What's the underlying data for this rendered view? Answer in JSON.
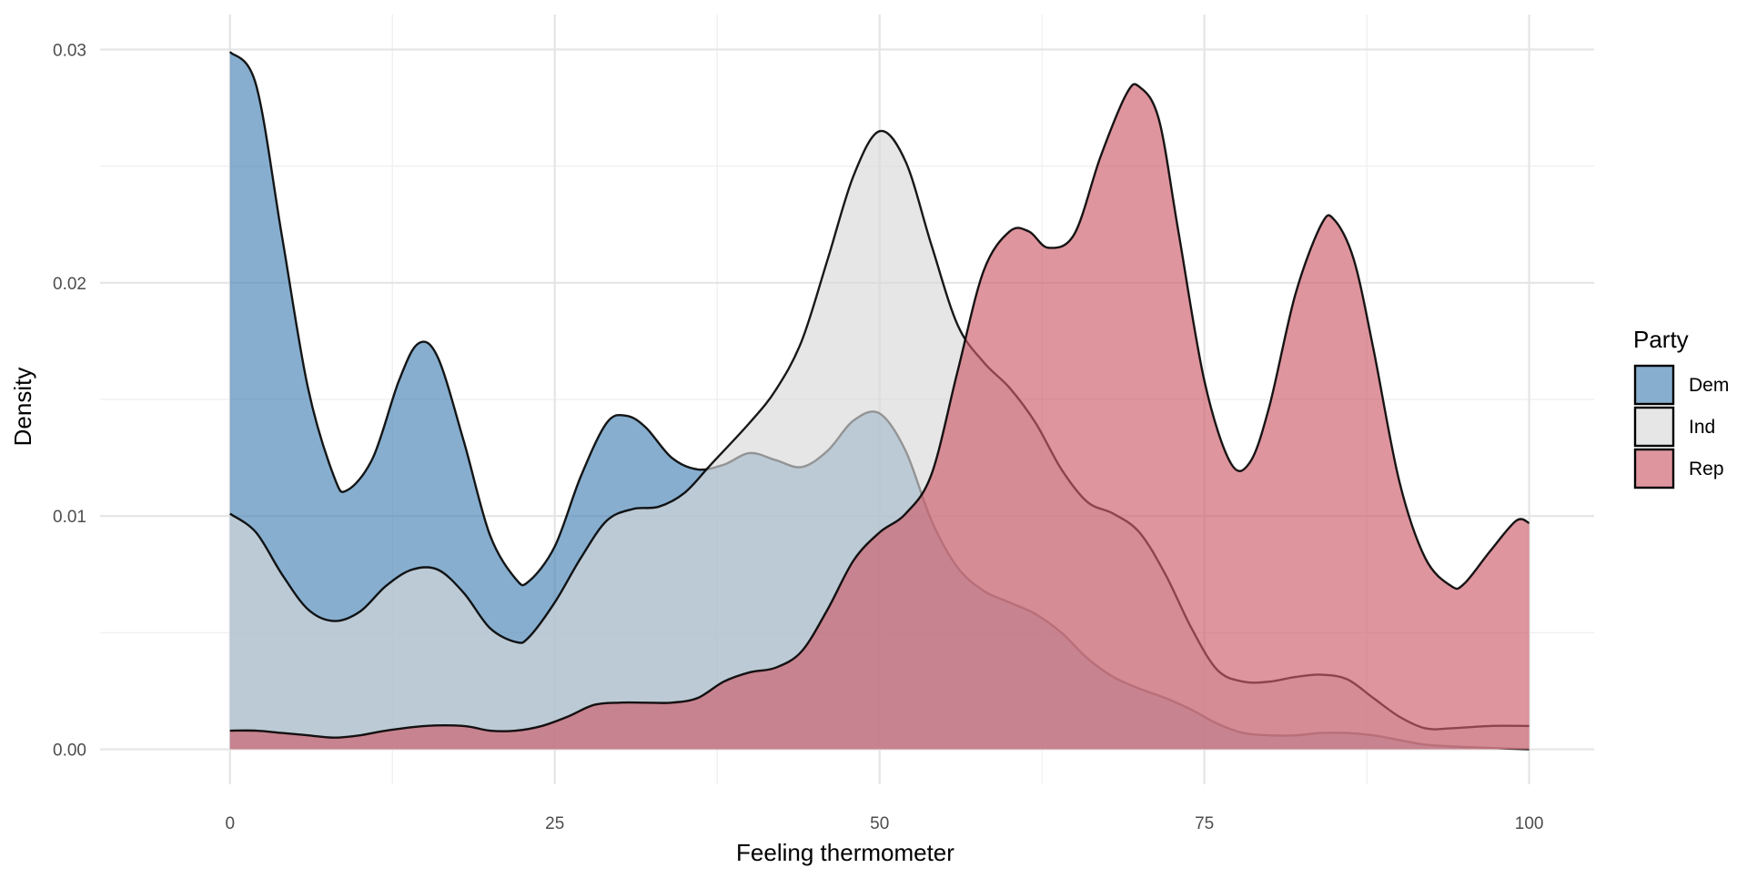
{
  "chart_data": {
    "type": "area",
    "title": "",
    "xlabel": "Feeling thermometer",
    "ylabel": "Density",
    "xlim": [
      -10,
      105
    ],
    "ylim": [
      -0.0015,
      0.0315
    ],
    "x_ticks": [
      0,
      25,
      50,
      75,
      100
    ],
    "x_tick_labels": [
      "0",
      "25",
      "50",
      "75",
      "100"
    ],
    "y_ticks": [
      0.0,
      0.01,
      0.02,
      0.03
    ],
    "y_tick_labels": [
      "0.00",
      "0.01",
      "0.02",
      "0.03"
    ],
    "grid": true,
    "legend": {
      "title": "Party",
      "position": "right"
    },
    "series": [
      {
        "name": "Dem",
        "color": "#4682b4",
        "points": [
          [
            0,
            0.0299
          ],
          [
            2,
            0.0285
          ],
          [
            4,
            0.022
          ],
          [
            6,
            0.0155
          ],
          [
            8,
            0.0117
          ],
          [
            9,
            0.0111
          ],
          [
            11,
            0.0125
          ],
          [
            13,
            0.0158
          ],
          [
            14.5,
            0.0174
          ],
          [
            16,
            0.0168
          ],
          [
            18,
            0.0132
          ],
          [
            20,
            0.0092
          ],
          [
            22,
            0.0073
          ],
          [
            23,
            0.0072
          ],
          [
            25,
            0.0087
          ],
          [
            27,
            0.0117
          ],
          [
            29,
            0.014
          ],
          [
            30.5,
            0.0143
          ],
          [
            32,
            0.0138
          ],
          [
            34,
            0.0125
          ],
          [
            36,
            0.012
          ],
          [
            38,
            0.0122
          ],
          [
            40,
            0.0127
          ],
          [
            42,
            0.0124
          ],
          [
            44,
            0.0121
          ],
          [
            46,
            0.0128
          ],
          [
            48,
            0.0141
          ],
          [
            50,
            0.0144
          ],
          [
            52,
            0.0128
          ],
          [
            54,
            0.0098
          ],
          [
            56,
            0.0078
          ],
          [
            58,
            0.0068
          ],
          [
            60,
            0.0063
          ],
          [
            62,
            0.0058
          ],
          [
            64,
            0.005
          ],
          [
            66,
            0.0039
          ],
          [
            68,
            0.0031
          ],
          [
            70,
            0.0026
          ],
          [
            72,
            0.0022
          ],
          [
            74,
            0.0017
          ],
          [
            76,
            0.0011
          ],
          [
            78,
            0.0007
          ],
          [
            80,
            0.0006
          ],
          [
            82,
            0.0006
          ],
          [
            84,
            0.0007
          ],
          [
            86,
            0.0007
          ],
          [
            88,
            0.0006
          ],
          [
            90,
            0.0004
          ],
          [
            92,
            0.0002
          ],
          [
            95,
            0.0001
          ],
          [
            100,
            0.0
          ]
        ]
      },
      {
        "name": "Ind",
        "color": "#d9d9d9",
        "points": [
          [
            0,
            0.0101
          ],
          [
            2,
            0.0093
          ],
          [
            4,
            0.0075
          ],
          [
            6,
            0.006
          ],
          [
            8,
            0.0055
          ],
          [
            10,
            0.0059
          ],
          [
            12,
            0.007
          ],
          [
            14,
            0.0077
          ],
          [
            16,
            0.0077
          ],
          [
            18,
            0.0067
          ],
          [
            20,
            0.0052
          ],
          [
            22,
            0.0046
          ],
          [
            23,
            0.0048
          ],
          [
            25,
            0.0063
          ],
          [
            27,
            0.0082
          ],
          [
            29,
            0.0098
          ],
          [
            31,
            0.0103
          ],
          [
            33,
            0.0104
          ],
          [
            35,
            0.011
          ],
          [
            37,
            0.0122
          ],
          [
            40,
            0.014
          ],
          [
            42,
            0.0154
          ],
          [
            44,
            0.0175
          ],
          [
            46,
            0.021
          ],
          [
            48,
            0.0246
          ],
          [
            50,
            0.0265
          ],
          [
            52,
            0.0252
          ],
          [
            54,
            0.0216
          ],
          [
            56,
            0.0182
          ],
          [
            58,
            0.0166
          ],
          [
            60,
            0.0155
          ],
          [
            62,
            0.014
          ],
          [
            64,
            0.012
          ],
          [
            66,
            0.0106
          ],
          [
            68,
            0.0101
          ],
          [
            70,
            0.0093
          ],
          [
            72,
            0.0075
          ],
          [
            74,
            0.0052
          ],
          [
            76,
            0.0034
          ],
          [
            78,
            0.0029
          ],
          [
            80,
            0.0029
          ],
          [
            82,
            0.0031
          ],
          [
            84,
            0.0032
          ],
          [
            86,
            0.003
          ],
          [
            88,
            0.0022
          ],
          [
            90,
            0.0014
          ],
          [
            92,
            0.0009
          ],
          [
            94,
            0.0009
          ],
          [
            97,
            0.001
          ],
          [
            100,
            0.001
          ]
        ]
      },
      {
        "name": "Rep",
        "color": "#cd5c6a",
        "points": [
          [
            0,
            0.0008
          ],
          [
            2,
            0.0008
          ],
          [
            4,
            0.0007
          ],
          [
            6,
            0.0006
          ],
          [
            8,
            0.0005
          ],
          [
            10,
            0.0006
          ],
          [
            12,
            0.0008
          ],
          [
            15,
            0.001
          ],
          [
            18,
            0.001
          ],
          [
            20,
            0.0008
          ],
          [
            22,
            0.0008
          ],
          [
            24,
            0.001
          ],
          [
            26,
            0.0014
          ],
          [
            28,
            0.0019
          ],
          [
            30,
            0.002
          ],
          [
            32,
            0.002
          ],
          [
            34,
            0.002
          ],
          [
            36,
            0.0022
          ],
          [
            38,
            0.0029
          ],
          [
            40,
            0.0033
          ],
          [
            42,
            0.0035
          ],
          [
            44,
            0.0042
          ],
          [
            46,
            0.006
          ],
          [
            48,
            0.0081
          ],
          [
            50,
            0.0093
          ],
          [
            52,
            0.0101
          ],
          [
            54,
            0.0118
          ],
          [
            56,
            0.0162
          ],
          [
            58,
            0.0205
          ],
          [
            60,
            0.0222
          ],
          [
            61.5,
            0.0222
          ],
          [
            63,
            0.0215
          ],
          [
            65,
            0.0221
          ],
          [
            67,
            0.0254
          ],
          [
            69,
            0.0281
          ],
          [
            70,
            0.0284
          ],
          [
            71.5,
            0.027
          ],
          [
            73,
            0.0222
          ],
          [
            75,
            0.0158
          ],
          [
            77,
            0.0123
          ],
          [
            78.5,
            0.0123
          ],
          [
            80,
            0.0147
          ],
          [
            82,
            0.0195
          ],
          [
            84,
            0.0225
          ],
          [
            85,
            0.0227
          ],
          [
            86.5,
            0.021
          ],
          [
            88,
            0.0172
          ],
          [
            90,
            0.0115
          ],
          [
            92,
            0.0082
          ],
          [
            94,
            0.007
          ],
          [
            95,
            0.0071
          ],
          [
            97,
            0.0085
          ],
          [
            99,
            0.0098
          ],
          [
            100,
            0.0097
          ]
        ]
      }
    ]
  }
}
